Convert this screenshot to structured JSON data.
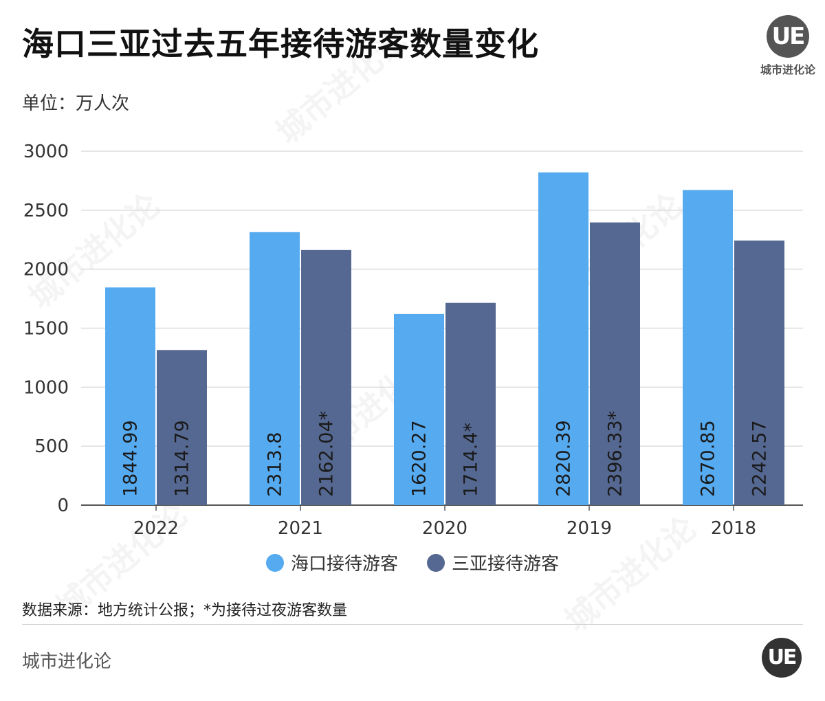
{
  "title": "海口三亚过去五年接待游客数量变化",
  "unit_label": "单位：万人次",
  "brand": {
    "logo_text": "UE",
    "name": "城市进化论"
  },
  "source_note": "数据来源：地方统计公报；*为接待过夜游客数量",
  "footer": {
    "brand_name": "城市进化论",
    "logo_text": "UE"
  },
  "watermark": {
    "text": "城市进化论"
  },
  "colors": {
    "haikou": "#56aaf0",
    "sanya": "#556891",
    "grid": "#dddddd",
    "axis": "#555555"
  },
  "chart_data": {
    "type": "bar",
    "title": "海口三亚过去五年接待游客数量变化",
    "ylabel": "单位：万人次",
    "xlabel": "",
    "categories": [
      "2022",
      "2021",
      "2020",
      "2019",
      "2018"
    ],
    "ylim": [
      0,
      3000
    ],
    "yticks": [
      0,
      500,
      1000,
      1500,
      2000,
      2500,
      3000
    ],
    "grid": true,
    "legend_position": "bottom",
    "series": [
      {
        "name": "海口接待游客",
        "color": "#56aaf0",
        "values": [
          1844.99,
          2313.8,
          1620.27,
          2820.39,
          2670.85
        ],
        "labels": [
          "1844.99",
          "2313.8",
          "1620.27",
          "2820.39",
          "2670.85"
        ]
      },
      {
        "name": "三亚接待游客",
        "color": "#556891",
        "values": [
          1314.79,
          2162.04,
          1714.4,
          2396.33,
          2242.57
        ],
        "labels": [
          "1314.79",
          "2162.04*",
          "1714.4*",
          "2396.33*",
          "2242.57"
        ]
      }
    ]
  }
}
